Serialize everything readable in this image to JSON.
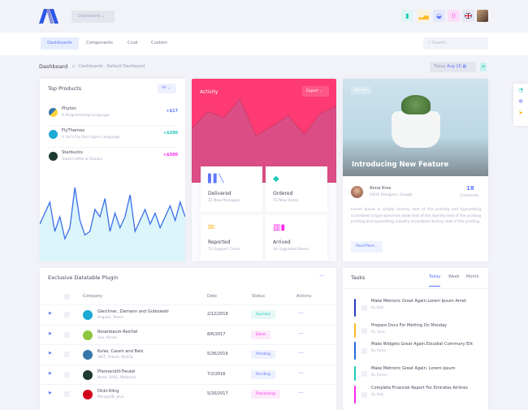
{
  "header": {
    "dashboard_dropdown": "Dashboard",
    "icons": [
      "file-icon",
      "chart-icon",
      "basket-icon",
      "grid-icon",
      "uk-flag-icon"
    ],
    "colors": {
      "file": "#1dc9b7",
      "chart": "#ffb822",
      "basket": "#5d78ff",
      "grid": "#fd27eb"
    }
  },
  "nav": {
    "tabs": [
      "Dashboards",
      "Components",
      "Crud",
      "Custom"
    ],
    "active": "Dashboards",
    "search_placeholder": "Search..."
  },
  "subheader": {
    "title": "Dashboard",
    "breadcrumb": [
      "Dashboards",
      "Default Dashboard"
    ],
    "date_label": "Today",
    "date_value": "Aug 16"
  },
  "top_products": {
    "title": "Top Products",
    "filter": "All",
    "items": [
      {
        "name": "Phyton",
        "desc": "A Programming Language",
        "value": "+$17",
        "color": "#5d78ff"
      },
      {
        "name": "FlyThemes",
        "desc": "A Let's Fly Fast Again Language",
        "value": "+$300",
        "color": "#1dc9b7"
      },
      {
        "name": "Starbucks",
        "desc": "Good Coffee & Snacks",
        "value": "+$300",
        "color": "#fd27eb"
      }
    ],
    "sparkline": [
      40,
      55,
      70,
      30,
      50,
      20,
      35,
      90,
      45,
      25,
      30,
      60,
      50,
      75,
      30,
      55,
      35,
      50,
      80,
      30,
      45,
      60,
      40,
      55,
      35,
      50,
      65,
      45,
      70,
      50
    ]
  },
  "activity": {
    "title": "Activity",
    "export": "Export",
    "area": [
      55,
      72,
      66,
      85,
      48,
      57,
      68,
      49,
      70,
      78
    ],
    "tiles": [
      {
        "title": "Delivered",
        "sub": "15 New Packages",
        "icon": "books-icon",
        "color": "#5d78ff"
      },
      {
        "title": "Ordered",
        "sub": "72 New Items",
        "icon": "layers-icon",
        "color": "#1dc9b7"
      },
      {
        "title": "Reported",
        "sub": "72 Support Cases",
        "icon": "mail-icon",
        "color": "#ffb822"
      },
      {
        "title": "Arrived",
        "sub": "34 Upgraded Boxes",
        "icon": "tools-icon",
        "color": "#fd27eb"
      }
    ]
  },
  "feature": {
    "badge": "Recent",
    "title": "Introducing New Feature",
    "author": "Anna Krox",
    "role": "UX/UI Designer, Google",
    "comments": "18",
    "comments_label": "Comments",
    "text": "Lorem Ipsum is simply dummy text of the printing and typesetting scrambled a type specimen book text of the dummy text of the printing printing and typesetting industry scrambled dummy text of the printing.",
    "read_more": "Read More..."
  },
  "table": {
    "title": "Exclusive Datatable Plugin",
    "columns": [
      "Company",
      "Date",
      "Status",
      "Actions"
    ],
    "rows": [
      {
        "company": "Gleichner, Ziemann and Gutkowski",
        "tech": "Angular, React",
        "date": "2/12/2018",
        "status": "Success",
        "logo": "#1ba9d6"
      },
      {
        "company": "Rosenbaum-Reichel",
        "tech": "Vue, Kendo",
        "date": "8/6/2017",
        "status": "Done",
        "logo": "#8dc63f"
      },
      {
        "company": "Kulas, Cassin and Batz",
        "tech": ".NET, Oracle, MySQL",
        "date": "5/26/2016",
        "status": "Pending",
        "logo": "#3776ab"
      },
      {
        "company": "Pfannerstill-Treutel",
        "tech": "Node, SASS, Webpack",
        "date": "7/2/2016",
        "status": "Pending",
        "logo": "#1e3932"
      },
      {
        "company": "Dicki-Kling",
        "tech": "MongoDB, Java",
        "date": "5/20/2017",
        "status": "Processing",
        "logo": "#d0021b"
      }
    ],
    "status_colors": {
      "Success": [
        "#e6f8f6",
        "#1dc9b7"
      ],
      "Done": [
        "#fde9fc",
        "#fd27eb"
      ],
      "Pending": [
        "#eef2ff",
        "#5d78ff"
      ],
      "Processing": [
        "#fde9fc",
        "#fd27eb"
      ]
    }
  },
  "tasks": {
    "title": "Tasks",
    "tabs": [
      "Today",
      "Week",
      "Month"
    ],
    "active": "Today",
    "items": [
      {
        "text": "Make Metronic Great Again.Lorem Ipsum Amet",
        "by": "By Bob",
        "color": "#2c3cc2"
      },
      {
        "text": "Prepare Docs For Metting On Monday",
        "by": "By Sean",
        "color": "#ffb822"
      },
      {
        "text": "Make Widgets Great Again.Estudiat Communy Elit",
        "by": "By Aziko",
        "color": "#1f6bdb"
      },
      {
        "text": "Make Metronic Great Again. Lorem Ipsum",
        "by": "By James",
        "color": "#1dc9b7"
      },
      {
        "text": "Completa Financial Report For Emirates Airlines",
        "by": "By Bob",
        "color": "#fd27eb"
      }
    ]
  }
}
